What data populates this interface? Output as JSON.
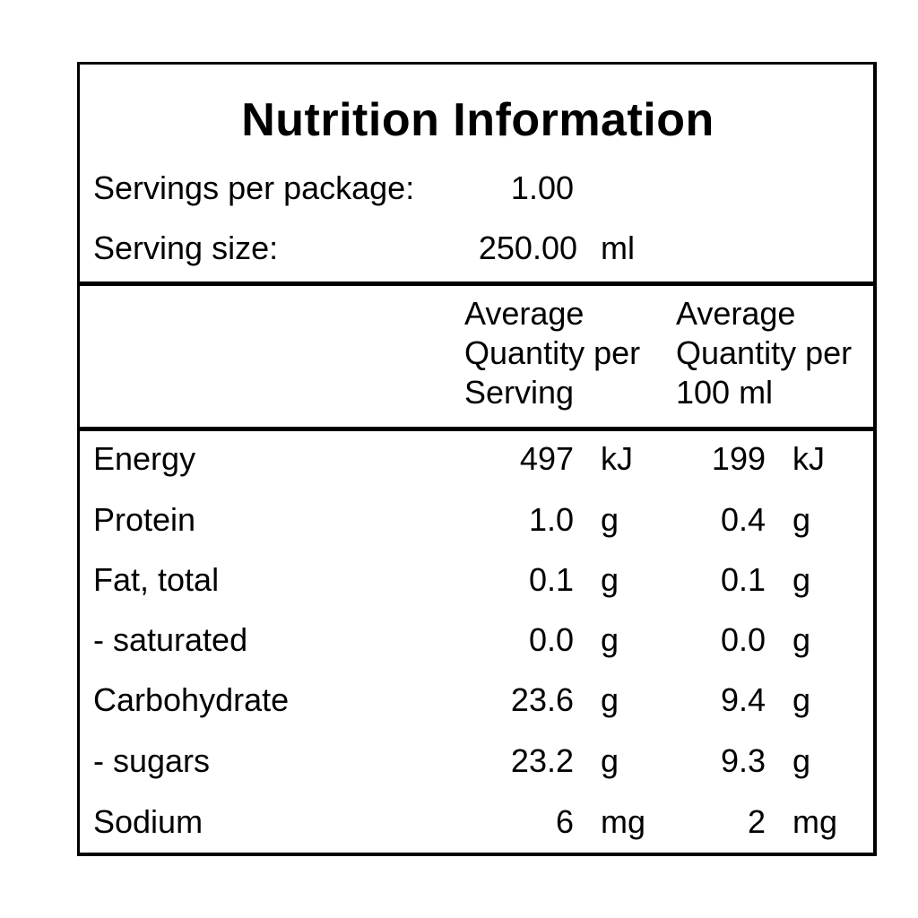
{
  "title": "Nutrition Information",
  "servings": {
    "per_package_label": "Servings per package:",
    "per_package_value": "1.00",
    "size_label": "Serving size:",
    "size_value": "250.00",
    "size_unit": "ml"
  },
  "columns": {
    "per_serving": "Average\nQuantity per\nServing",
    "per_100": "Average\nQuantity per\n100 ml"
  },
  "rows": [
    {
      "name": "Energy",
      "serving": "497",
      "serving_unit": "kJ",
      "per100": "199",
      "per100_unit": "kJ"
    },
    {
      "name": "Protein",
      "serving": "1.0",
      "serving_unit": "g",
      "per100": "0.4",
      "per100_unit": "g"
    },
    {
      "name": "Fat, total",
      "serving": "0.1",
      "serving_unit": "g",
      "per100": "0.1",
      "per100_unit": "g"
    },
    {
      "name": "- saturated",
      "serving": "0.0",
      "serving_unit": "g",
      "per100": "0.0",
      "per100_unit": "g"
    },
    {
      "name": "Carbohydrate",
      "serving": "23.6",
      "serving_unit": "g",
      "per100": "9.4",
      "per100_unit": "g"
    },
    {
      "name": "- sugars",
      "serving": "23.2",
      "serving_unit": "g",
      "per100": "9.3",
      "per100_unit": "g"
    },
    {
      "name": "Sodium",
      "serving": "6",
      "serving_unit": "mg",
      "per100": "2",
      "per100_unit": "mg"
    }
  ]
}
